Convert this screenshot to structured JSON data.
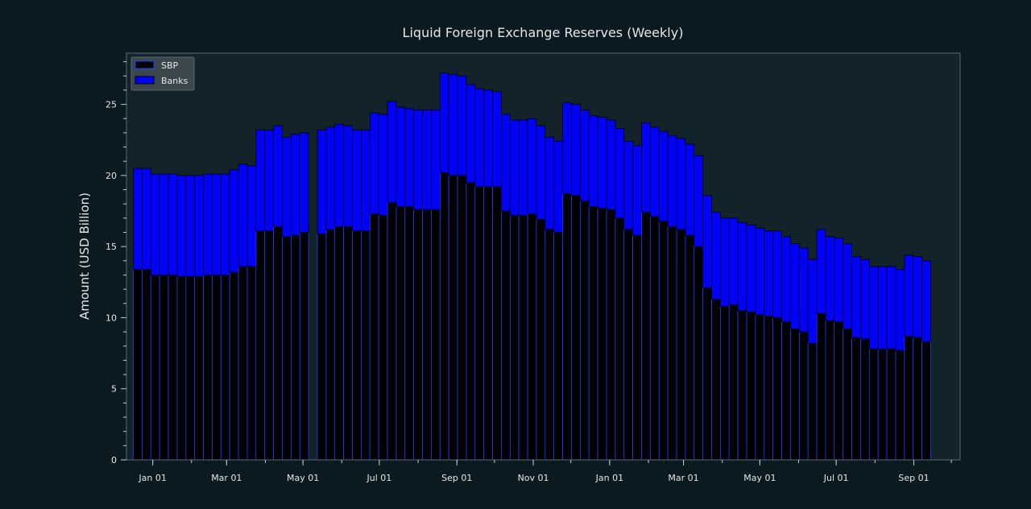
{
  "chart_data": {
    "type": "bar",
    "stacked": true,
    "title": "Liquid Foreign Exchange Reserves (Weekly)",
    "xlabel": "",
    "ylabel": "Amount (USD Billion)",
    "ylim": [
      0,
      28.6
    ],
    "yticks": [
      0,
      5,
      10,
      15,
      20,
      25
    ],
    "xlim": [
      "2021-12-11",
      "2023-10-08"
    ],
    "xticks": [
      {
        "date": "2022-01-01",
        "label": "Jan 01"
      },
      {
        "date": "2022-03-01",
        "label": "Mar 01"
      },
      {
        "date": "2022-05-01",
        "label": "May 01"
      },
      {
        "date": "2022-07-01",
        "label": "Jul 01"
      },
      {
        "date": "2022-09-01",
        "label": "Sep 01"
      },
      {
        "date": "2022-11-01",
        "label": "Nov 01"
      },
      {
        "date": "2023-01-01",
        "label": "Jan 01"
      },
      {
        "date": "2023-03-01",
        "label": "Mar 01"
      },
      {
        "date": "2023-05-01",
        "label": "May 01"
      },
      {
        "date": "2023-07-01",
        "label": "Jul 01"
      },
      {
        "date": "2023-09-01",
        "label": "Sep 01"
      }
    ],
    "grid": false,
    "legend_position": "top-left",
    "x": [
      "2021-12-20",
      "2021-12-27",
      "2022-01-03",
      "2022-01-10",
      "2022-01-17",
      "2022-01-24",
      "2022-01-31",
      "2022-02-07",
      "2022-02-14",
      "2022-02-21",
      "2022-02-28",
      "2022-03-07",
      "2022-03-14",
      "2022-03-21",
      "2022-03-28",
      "2022-04-04",
      "2022-04-11",
      "2022-04-18",
      "2022-04-25",
      "2022-05-02",
      "2022-05-16",
      "2022-05-23",
      "2022-05-30",
      "2022-06-06",
      "2022-06-13",
      "2022-06-20",
      "2022-06-27",
      "2022-07-04",
      "2022-07-11",
      "2022-07-18",
      "2022-07-25",
      "2022-08-01",
      "2022-08-08",
      "2022-08-15",
      "2022-08-22",
      "2022-08-29",
      "2022-09-05",
      "2022-09-12",
      "2022-09-19",
      "2022-09-26",
      "2022-10-03",
      "2022-10-10",
      "2022-10-17",
      "2022-10-24",
      "2022-10-31",
      "2022-11-07",
      "2022-11-14",
      "2022-11-21",
      "2022-11-28",
      "2022-12-05",
      "2022-12-12",
      "2022-12-19",
      "2022-12-26",
      "2023-01-02",
      "2023-01-09",
      "2023-01-16",
      "2023-01-23",
      "2023-01-30",
      "2023-02-06",
      "2023-02-13",
      "2023-02-20",
      "2023-02-27",
      "2023-03-06",
      "2023-03-13",
      "2023-03-20",
      "2023-03-27",
      "2023-04-03",
      "2023-04-10",
      "2023-04-17",
      "2023-04-24",
      "2023-05-01",
      "2023-05-08",
      "2023-05-15",
      "2023-05-22",
      "2023-05-29",
      "2023-06-05",
      "2023-06-12",
      "2023-06-19",
      "2023-06-26",
      "2023-07-03",
      "2023-07-10",
      "2023-07-17",
      "2023-07-24",
      "2023-07-31",
      "2023-08-07",
      "2023-08-14",
      "2023-08-21",
      "2023-08-28",
      "2023-09-04",
      "2023-09-11"
    ],
    "series": [
      {
        "name": "SBP",
        "color": "#000000",
        "values": [
          13.4,
          13.4,
          13.0,
          13.0,
          13.0,
          12.9,
          12.9,
          12.9,
          13.0,
          13.0,
          13.0,
          13.2,
          13.6,
          13.6,
          16.1,
          16.1,
          16.4,
          15.7,
          15.8,
          16.0,
          15.9,
          16.2,
          16.4,
          16.4,
          16.1,
          16.1,
          17.3,
          17.2,
          18.1,
          17.8,
          17.8,
          17.6,
          17.6,
          17.6,
          20.2,
          20.0,
          20.0,
          19.5,
          19.2,
          19.2,
          19.2,
          17.5,
          17.2,
          17.2,
          17.3,
          16.9,
          16.2,
          16.0,
          18.7,
          18.6,
          18.2,
          17.8,
          17.7,
          17.6,
          17.0,
          16.2,
          15.8,
          17.4,
          17.1,
          16.8,
          16.4,
          16.2,
          15.8,
          15.0,
          12.1,
          11.3,
          10.8,
          10.9,
          10.5,
          10.4,
          10.2,
          10.1,
          10.0,
          9.7,
          9.2,
          9.0,
          8.2,
          10.3,
          9.8,
          9.7,
          9.2,
          8.6,
          8.5,
          7.8,
          7.8,
          7.8,
          7.7,
          8.7,
          8.6,
          8.3
        ]
      },
      {
        "name": "Banks",
        "color": "#0000ff",
        "values": [
          7.1,
          7.1,
          7.1,
          7.1,
          7.1,
          7.1,
          7.1,
          7.1,
          7.1,
          7.1,
          7.1,
          7.2,
          7.2,
          7.1,
          7.1,
          7.1,
          7.1,
          7.0,
          7.1,
          7.0,
          7.3,
          7.2,
          7.2,
          7.1,
          7.1,
          7.1,
          7.1,
          7.1,
          7.1,
          7.0,
          6.9,
          7.0,
          7.0,
          7.0,
          7.0,
          7.1,
          7.0,
          6.9,
          6.9,
          6.8,
          6.7,
          6.8,
          6.7,
          6.7,
          6.7,
          6.6,
          6.5,
          6.4,
          6.4,
          6.4,
          6.4,
          6.4,
          6.4,
          6.3,
          6.3,
          6.2,
          6.3,
          6.3,
          6.3,
          6.3,
          6.4,
          6.4,
          6.4,
          6.4,
          6.5,
          6.1,
          6.2,
          6.1,
          6.2,
          6.1,
          6.1,
          6.0,
          6.1,
          6.0,
          6.0,
          5.9,
          5.9,
          5.9,
          5.9,
          5.9,
          6.0,
          5.7,
          5.6,
          5.8,
          5.8,
          5.8,
          5.7,
          5.7,
          5.7,
          5.7
        ]
      }
    ]
  }
}
